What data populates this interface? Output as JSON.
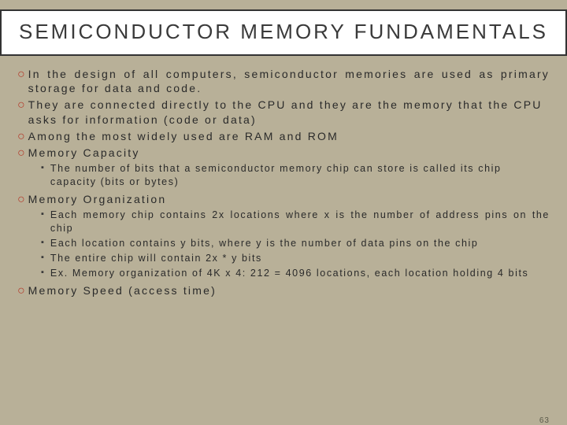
{
  "colors": {
    "background": "#b8b098",
    "header_bg": "#ffffff",
    "header_border": "#333333",
    "title_text": "#3a3a3a",
    "body_text": "#2a2a2a",
    "bullet_accent": "#b33a2a",
    "sub_bullet": "#3a3a3a",
    "page_num": "#5a5a4a"
  },
  "typography": {
    "title_fontsize": 26,
    "title_letter_spacing": 3,
    "lvl1_fontsize": 14,
    "lvl1_letter_spacing": 2.2,
    "lvl2_fontsize": 12.5,
    "lvl2_letter_spacing": 1.6
  },
  "title": "SEMICONDUCTOR MEMORY FUNDAMENTALS",
  "bullets": [
    {
      "text": "In the design of all computers, semiconductor memories are used as primary storage for data and code.",
      "justify": true
    },
    {
      "text": "They are connected directly to the CPU and they are the memory that the CPU asks for information (code or data)",
      "justify": false
    },
    {
      "text": "Among the most widely used are RAM and ROM",
      "justify": false
    },
    {
      "text": "Memory Capacity",
      "justify": false,
      "sub": [
        {
          "text": "The number of bits that a semiconductor memory chip can store is called its chip capacity (bits or bytes)",
          "justify": false
        }
      ]
    },
    {
      "text": "Memory Organization",
      "justify": false,
      "sub": [
        {
          "text": "Each memory chip contains 2x locations where x is the number of address pins on the chip",
          "justify": true
        },
        {
          "text": "Each location contains y bits, where y is the number of data pins on the chip",
          "justify": false
        },
        {
          "text": "The entire chip will contain 2x * y bits",
          "justify": false
        },
        {
          "text": "Ex. Memory organization of 4K x 4: 212 = 4096 locations, each location holding 4 bits",
          "justify": false
        }
      ]
    },
    {
      "text": "Memory Speed (access time)",
      "justify": false
    }
  ],
  "page_number": "63"
}
